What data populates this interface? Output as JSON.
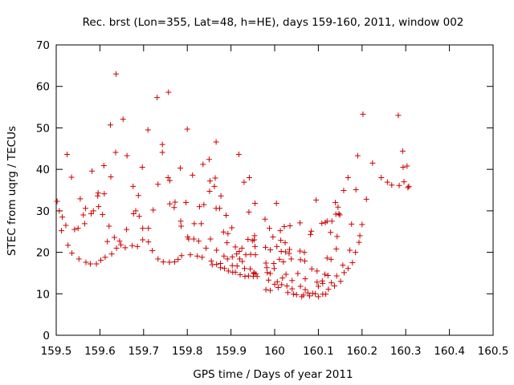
{
  "chart_data": {
    "type": "scatter",
    "title": "Rec. brst (Lon=355, Lat=48, h=HE), days 159-160, 2011, window 002",
    "xlabel": "GPS time / Days of year 2011",
    "ylabel": "STEC from uqrg / TECUs",
    "xlim": [
      159.5,
      160.5
    ],
    "ylim": [
      0,
      70
    ],
    "xticks": [
      "159.5",
      "159.6",
      "159.7",
      "159.8",
      "159.9",
      "160",
      "160.1",
      "160.2",
      "160.3",
      "160.4",
      "160.5"
    ],
    "yticks": [
      "0",
      "10",
      "20",
      "30",
      "40",
      "50",
      "60",
      "70"
    ],
    "grid": false,
    "legend": "none",
    "marker": "+",
    "color": "#cc0000",
    "points": [
      [
        159.502,
        32.3
      ],
      [
        159.507,
        30.0
      ],
      [
        159.514,
        28.5
      ],
      [
        159.512,
        25.2
      ],
      [
        159.522,
        26.5
      ],
      [
        159.525,
        43.6
      ],
      [
        159.527,
        21.7
      ],
      [
        159.535,
        38.1
      ],
      [
        159.536,
        19.8
      ],
      [
        159.542,
        25.5
      ],
      [
        159.55,
        25.8
      ],
      [
        159.555,
        32.9
      ],
      [
        159.552,
        18.4
      ],
      [
        159.562,
        29.0
      ],
      [
        159.567,
        30.6
      ],
      [
        159.565,
        26.9
      ],
      [
        159.568,
        17.6
      ],
      [
        159.578,
        17.2
      ],
      [
        159.58,
        29.3
      ],
      [
        159.582,
        39.6
      ],
      [
        159.585,
        30.0
      ],
      [
        159.592,
        17.2
      ],
      [
        159.595,
        33.6
      ],
      [
        159.596,
        34.3
      ],
      [
        159.597,
        31.0
      ],
      [
        159.602,
        18.1
      ],
      [
        159.606,
        29.1
      ],
      [
        159.61,
        34.1
      ],
      [
        159.609,
        40.9
      ],
      [
        159.612,
        18.8
      ],
      [
        159.617,
        22.6
      ],
      [
        159.621,
        26.3
      ],
      [
        159.624,
        50.7
      ],
      [
        159.625,
        38.2
      ],
      [
        159.627,
        19.6
      ],
      [
        159.633,
        23.6
      ],
      [
        159.636,
        44.1
      ],
      [
        159.637,
        63.0
      ],
      [
        159.638,
        21.0
      ],
      [
        159.645,
        22.7
      ],
      [
        159.653,
        52.1
      ],
      [
        159.648,
        21.8
      ],
      [
        159.661,
        25.5
      ],
      [
        159.662,
        43.3
      ],
      [
        159.658,
        21.1
      ],
      [
        159.674,
        21.6
      ],
      [
        159.677,
        29.3
      ],
      [
        159.676,
        35.9
      ],
      [
        159.682,
        30.0
      ],
      [
        159.686,
        21.4
      ],
      [
        159.688,
        33.7
      ],
      [
        159.69,
        28.7
      ],
      [
        159.697,
        40.5
      ],
      [
        159.698,
        25.8
      ],
      [
        159.698,
        23.0
      ],
      [
        159.71,
        49.5
      ],
      [
        159.711,
        25.8
      ],
      [
        159.711,
        22.5
      ],
      [
        159.72,
        20.4
      ],
      [
        159.722,
        30.2
      ],
      [
        159.731,
        57.3
      ],
      [
        159.733,
        36.4
      ],
      [
        159.733,
        18.4
      ],
      [
        159.743,
        44.1
      ],
      [
        159.743,
        46.0
      ],
      [
        159.745,
        17.7
      ],
      [
        159.757,
        58.6
      ],
      [
        159.76,
        37.3
      ],
      [
        159.759,
        17.6
      ],
      [
        159.756,
        38.0
      ],
      [
        159.76,
        31.7
      ],
      [
        159.77,
        30.8
      ],
      [
        159.771,
        17.7
      ],
      [
        159.772,
        32.1
      ],
      [
        159.779,
        18.3
      ],
      [
        159.784,
        40.3
      ],
      [
        159.785,
        27.5
      ],
      [
        159.786,
        26.3
      ],
      [
        159.787,
        19.2
      ],
      [
        159.797,
        32.0
      ],
      [
        159.8,
        49.7
      ],
      [
        159.801,
        23.7
      ],
      [
        159.803,
        23.2
      ],
      [
        159.807,
        19.4
      ],
      [
        159.812,
        38.6
      ],
      [
        159.815,
        23.2
      ],
      [
        159.816,
        26.9
      ],
      [
        159.823,
        19.1
      ],
      [
        159.826,
        22.7
      ],
      [
        159.828,
        31.0
      ],
      [
        159.832,
        26.9
      ],
      [
        159.834,
        18.8
      ],
      [
        159.836,
        41.2
      ],
      [
        159.838,
        31.5
      ],
      [
        159.843,
        21.0
      ],
      [
        159.85,
        42.4
      ],
      [
        159.852,
        37.2
      ],
      [
        159.851,
        34.7
      ],
      [
        159.853,
        23.2
      ],
      [
        159.855,
        17.9
      ],
      [
        159.857,
        17.0
      ],
      [
        159.862,
        35.9
      ],
      [
        159.864,
        37.9
      ],
      [
        159.866,
        30.6
      ],
      [
        159.866,
        46.6
      ],
      [
        159.867,
        20.5
      ],
      [
        159.867,
        17.1
      ],
      [
        159.874,
        30.6
      ],
      [
        159.876,
        17.3
      ],
      [
        159.876,
        16.3
      ],
      [
        159.877,
        33.6
      ],
      [
        159.883,
        24.9
      ],
      [
        159.884,
        19.1
      ],
      [
        159.885,
        16.1
      ],
      [
        159.889,
        28.9
      ],
      [
        159.891,
        22.3
      ],
      [
        159.893,
        24.5
      ],
      [
        159.892,
        18.4
      ],
      [
        159.894,
        15.5
      ],
      [
        159.902,
        25.9
      ],
      [
        159.903,
        16.8
      ],
      [
        159.903,
        18.9
      ],
      [
        159.904,
        15.2
      ],
      [
        159.91,
        21.3
      ],
      [
        159.91,
        15.2
      ],
      [
        159.913,
        19.6
      ],
      [
        159.914,
        16.7
      ],
      [
        159.918,
        43.6
      ],
      [
        159.919,
        20.2
      ],
      [
        159.92,
        18.4
      ],
      [
        159.921,
        14.6
      ],
      [
        159.925,
        21.0
      ],
      [
        159.926,
        17.8
      ],
      [
        159.93,
        36.9
      ],
      [
        159.931,
        16.1
      ],
      [
        159.932,
        14.2
      ],
      [
        159.934,
        19.4
      ],
      [
        159.939,
        23.1
      ],
      [
        159.94,
        14.3
      ],
      [
        159.941,
        29.7
      ],
      [
        159.942,
        38.0
      ],
      [
        159.944,
        16.0
      ],
      [
        159.945,
        19.5
      ],
      [
        159.949,
        22.8
      ],
      [
        159.951,
        14.2
      ],
      [
        159.952,
        14.9
      ],
      [
        159.953,
        15.1
      ],
      [
        159.953,
        23.0
      ],
      [
        159.954,
        24.0
      ],
      [
        159.955,
        31.8
      ],
      [
        159.955,
        21.4
      ],
      [
        159.956,
        19.4
      ],
      [
        159.957,
        14.8
      ],
      [
        159.96,
        14.2
      ],
      [
        159.978,
        28.0
      ],
      [
        159.979,
        21.2
      ],
      [
        159.98,
        17.4
      ],
      [
        159.98,
        11.0
      ],
      [
        159.982,
        16.3
      ],
      [
        159.983,
        15.1
      ],
      [
        159.986,
        13.3
      ],
      [
        159.988,
        25.8
      ],
      [
        159.99,
        20.6
      ],
      [
        159.99,
        14.9
      ],
      [
        159.99,
        10.8
      ],
      [
        159.996,
        23.7
      ],
      [
        159.998,
        17.3
      ],
      [
        159.999,
        16.1
      ],
      [
        160.0,
        12.3
      ],
      [
        160.004,
        31.8
      ],
      [
        160.005,
        21.4
      ],
      [
        160.006,
        12.9
      ],
      [
        160.008,
        11.5
      ],
      [
        160.011,
        18.3
      ],
      [
        160.013,
        25.2
      ],
      [
        160.014,
        22.9
      ],
      [
        160.015,
        20.2
      ],
      [
        160.016,
        12.2
      ],
      [
        160.018,
        13.8
      ],
      [
        160.02,
        17.7
      ],
      [
        160.022,
        26.2
      ],
      [
        160.024,
        22.3
      ],
      [
        160.025,
        20.1
      ],
      [
        160.026,
        14.7
      ],
      [
        160.028,
        11.9
      ],
      [
        160.03,
        10.3
      ],
      [
        160.033,
        19.7
      ],
      [
        160.034,
        20.7
      ],
      [
        160.035,
        26.4
      ],
      [
        160.038,
        18.4
      ],
      [
        160.04,
        13.2
      ],
      [
        160.04,
        11.2
      ],
      [
        160.043,
        9.9
      ],
      [
        160.05,
        9.8
      ],
      [
        160.053,
        14.9
      ],
      [
        160.058,
        27.1
      ],
      [
        160.058,
        20.3
      ],
      [
        160.059,
        18.2
      ],
      [
        160.059,
        11.8
      ],
      [
        160.062,
        9.3
      ],
      [
        160.066,
        9.7
      ],
      [
        160.068,
        20.0
      ],
      [
        160.069,
        17.9
      ],
      [
        160.07,
        13.6
      ],
      [
        160.07,
        11.0
      ],
      [
        160.076,
        10.2
      ],
      [
        160.08,
        9.5
      ],
      [
        160.082,
        24.3
      ],
      [
        160.084,
        25.1
      ],
      [
        160.085,
        16.0
      ],
      [
        160.087,
        10.1
      ],
      [
        160.093,
        10.0
      ],
      [
        160.095,
        32.6
      ],
      [
        160.097,
        15.5
      ],
      [
        160.097,
        12.8
      ],
      [
        160.1,
        11.8
      ],
      [
        160.1,
        9.3
      ],
      [
        160.108,
        27.0
      ],
      [
        160.109,
        13.1
      ],
      [
        160.11,
        9.9
      ],
      [
        160.11,
        12.5
      ],
      [
        160.115,
        14.7
      ],
      [
        160.116,
        27.2
      ],
      [
        160.117,
        9.9
      ],
      [
        160.12,
        27.5
      ],
      [
        160.12,
        18.6
      ],
      [
        160.122,
        14.4
      ],
      [
        160.123,
        11.1
      ],
      [
        160.128,
        24.8
      ],
      [
        160.129,
        18.3
      ],
      [
        160.13,
        12.7
      ],
      [
        160.131,
        27.5
      ],
      [
        160.137,
        11.9
      ],
      [
        160.139,
        32.0
      ],
      [
        160.14,
        29.2
      ],
      [
        160.141,
        20.8
      ],
      [
        160.142,
        14.3
      ],
      [
        160.143,
        23.8
      ],
      [
        160.145,
        30.9
      ],
      [
        160.147,
        29.3
      ],
      [
        160.149,
        29.0
      ],
      [
        160.151,
        13.0
      ],
      [
        160.156,
        16.9
      ],
      [
        160.158,
        34.9
      ],
      [
        160.159,
        15.1
      ],
      [
        160.168,
        38.0
      ],
      [
        160.168,
        16.1
      ],
      [
        160.172,
        20.5
      ],
      [
        160.176,
        26.8
      ],
      [
        160.178,
        17.5
      ],
      [
        160.185,
        20.0
      ],
      [
        160.186,
        35.1
      ],
      [
        160.19,
        43.3
      ],
      [
        160.193,
        22.4
      ],
      [
        160.195,
        24.0
      ],
      [
        160.2,
        26.7
      ],
      [
        160.202,
        53.3
      ],
      [
        160.21,
        32.8
      ],
      [
        160.224,
        41.5
      ],
      [
        160.244,
        38.0
      ],
      [
        160.258,
        36.9
      ],
      [
        160.268,
        36.2
      ],
      [
        160.283,
        53.0
      ],
      [
        160.285,
        36.1
      ],
      [
        160.293,
        44.4
      ],
      [
        160.294,
        40.5
      ],
      [
        160.296,
        37.0
      ],
      [
        160.303,
        40.8
      ],
      [
        160.305,
        35.6
      ],
      [
        160.307,
        35.9
      ]
    ]
  }
}
